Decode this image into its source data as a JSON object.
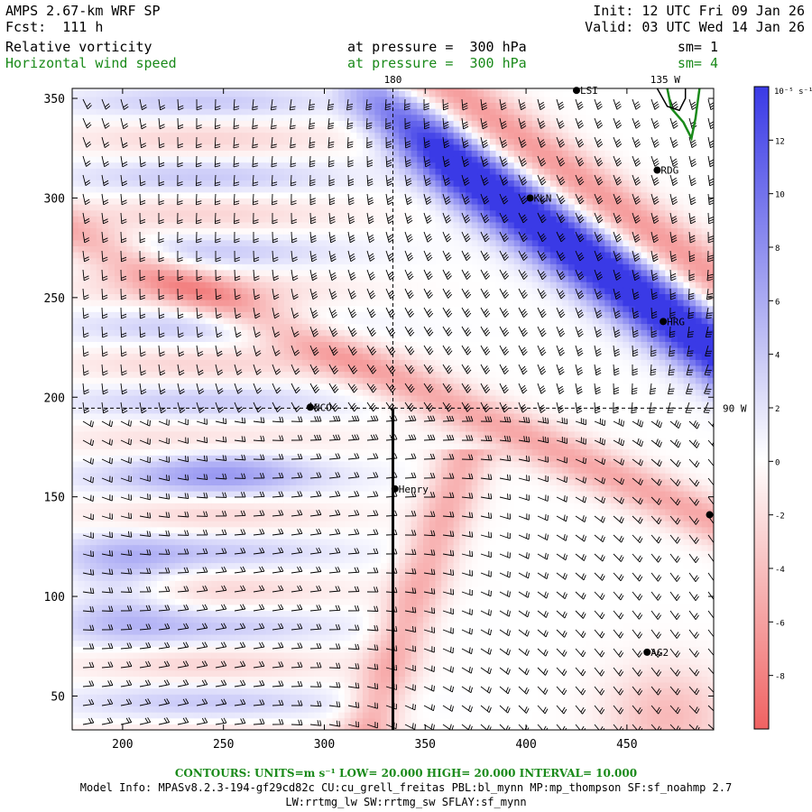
{
  "header": {
    "model": "AMPS 2.67-km WRF SP",
    "fcst": "Fcst:  111 h",
    "init": "Init: 12 UTC Fri 09 Jan 26",
    "valid": "Valid: 03 UTC Wed 14 Jan 26",
    "field1_name": "Relative vorticity",
    "field1_level": "at pressure =  300 hPa",
    "field1_sm": "sm= 1",
    "field2_name": "Horizontal wind speed",
    "field2_level": "at pressure =  300 hPa",
    "field2_sm": "sm= 4"
  },
  "colors": {
    "negative_deep": "#f06262",
    "neutral": "#ffffff",
    "positive_deep": "#3a3ae6",
    "contour": "#1a8a1a"
  },
  "chart_data": {
    "type": "heatmap",
    "x_ticks": [
      200,
      250,
      300,
      350,
      400,
      450
    ],
    "y_ticks": [
      50,
      100,
      150,
      200,
      250,
      300,
      350
    ],
    "xlim": [
      175,
      493
    ],
    "ylim": [
      33,
      355
    ],
    "longitude_labels": [
      "180",
      "135 W",
      "90 W"
    ],
    "colorbar": {
      "unit_label": "10⁻⁵ s⁻¹",
      "ticks": [
        12,
        10,
        8,
        6,
        4,
        2,
        0,
        -2,
        -4,
        -6,
        -8
      ],
      "range": [
        -10,
        14
      ]
    },
    "stations": [
      {
        "name": "LSI",
        "x": 425,
        "y": 354
      },
      {
        "name": "RDG",
        "x": 465,
        "y": 314
      },
      {
        "name": "KLN",
        "x": 402,
        "y": 300
      },
      {
        "name": "HRG",
        "x": 468,
        "y": 238
      },
      {
        "name": "NCO",
        "x": 293,
        "y": 195
      },
      {
        "name": "Henry",
        "x": 335,
        "y": 154
      },
      {
        "name": "",
        "x": 491,
        "y": 141
      },
      {
        "name": "AG2",
        "x": 460,
        "y": 72
      }
    ],
    "cross_section_x": 334,
    "grid_lines": {
      "lon180_x": 334,
      "lat_y": 194.5
    }
  },
  "footer": {
    "contours": "CONTOURS:  UNITS=m s⁻¹  LOW=  20.000      HIGH=  20.000      INTERVAL=   10.000",
    "model_info": "Model Info: MPASv8.2.3-194-gf29cd82c CU:cu_grell_freitas PBL:bl_mynn MP:mp_thompson SF:sf_noahmp 2.7",
    "model_info2": "LW:rrtmg_lw SW:rrtmg_sw SFLAY:sf_mynn"
  }
}
